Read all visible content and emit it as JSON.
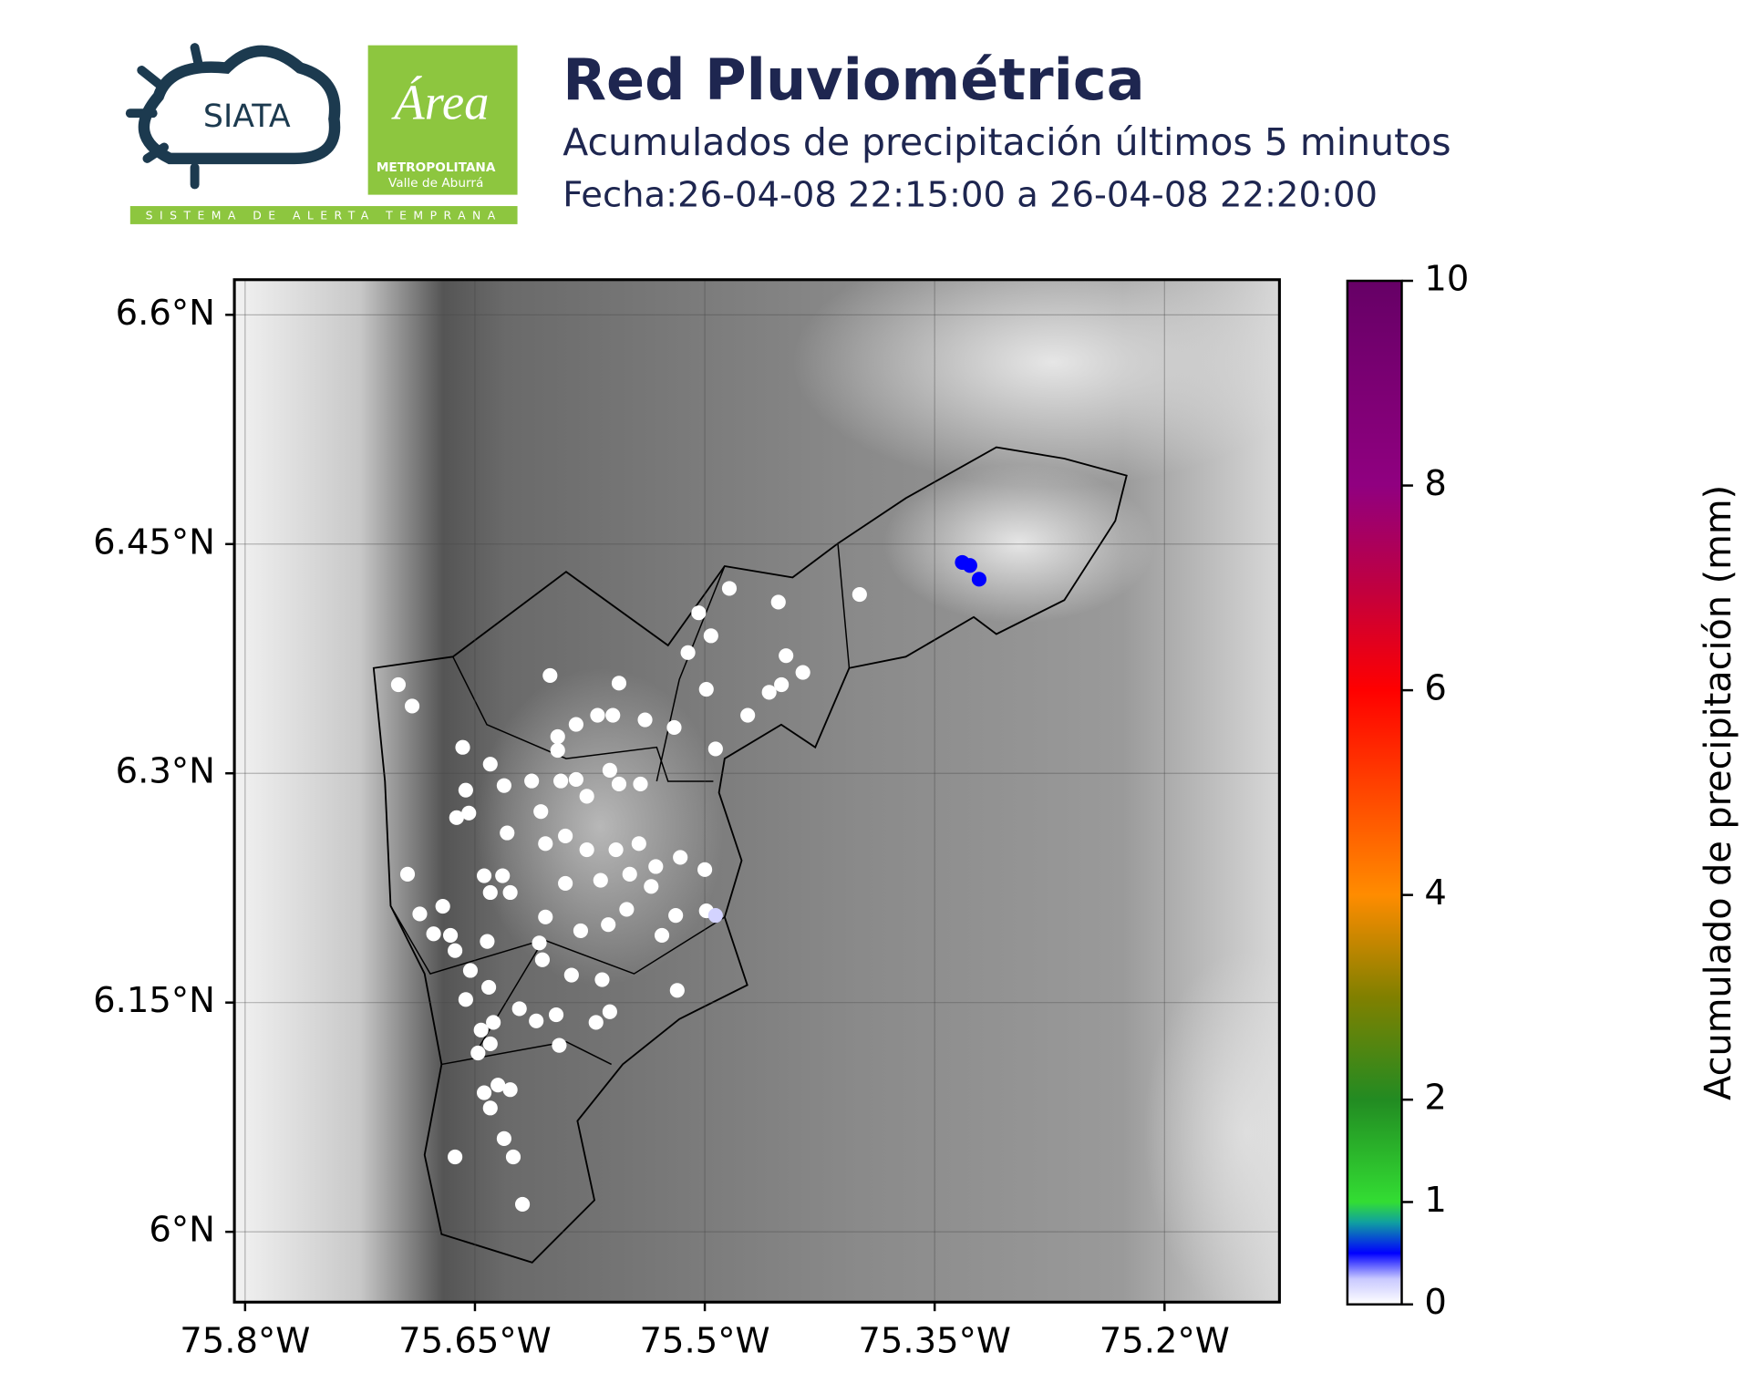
{
  "logos": {
    "siata": "SIATA",
    "area": "Área",
    "metropolitana": "METROPOLITANA",
    "valle": "Valle de Aburrá",
    "sistema": "SISTEMA DE ALERTA TEMPRANA"
  },
  "chart_data": {
    "type": "scatter",
    "title": "Red Pluviométrica",
    "subtitle": "Acumulados de precipitación últimos 5 minutos",
    "date": "Fecha:26-04-08 22:15:00 a 26-04-08 22:20:00",
    "xlim": [
      -75.807,
      -75.125
    ],
    "ylim": [
      5.954,
      6.623
    ],
    "xticks": [
      {
        "value": -75.8,
        "label": "75.8°W"
      },
      {
        "value": -75.65,
        "label": "75.65°W"
      },
      {
        "value": -75.5,
        "label": "75.5°W"
      },
      {
        "value": -75.35,
        "label": "75.35°W"
      },
      {
        "value": -75.2,
        "label": "75.2°W"
      }
    ],
    "yticks": [
      {
        "value": 6.6,
        "label": "6.6°N"
      },
      {
        "value": 6.45,
        "label": "6.45°N"
      },
      {
        "value": 6.3,
        "label": "6.3°N"
      },
      {
        "value": 6.15,
        "label": "6.15°N"
      },
      {
        "value": 6,
        "label": "6°N"
      }
    ],
    "grid": true,
    "colorbar": {
      "label": "Acumulado de precipitación (mm)",
      "lim": [
        0,
        10
      ],
      "ticks": [
        0,
        1,
        2,
        4,
        6,
        8,
        10
      ],
      "colors": [
        [
          0,
          "#ffffff"
        ],
        [
          0.25,
          "#c8c8ff"
        ],
        [
          0.5,
          "#0000ff"
        ],
        [
          0.8,
          "#10a0a0"
        ],
        [
          1,
          "#33dd33"
        ],
        [
          2,
          "#228b22"
        ],
        [
          3,
          "#808000"
        ],
        [
          4,
          "#ff8c00"
        ],
        [
          6,
          "#ff0000"
        ],
        [
          7,
          "#c00040"
        ],
        [
          8,
          "#900080"
        ],
        [
          10,
          "#660066"
        ]
      ]
    },
    "x": [
      -75.7,
      -75.691,
      -75.658,
      -75.64,
      -75.601,
      -75.556,
      -75.484,
      -75.504,
      -75.452,
      -75.399,
      -75.511,
      -75.496,
      -75.447,
      -75.436,
      -75.458,
      -75.45,
      -75.499,
      -75.472,
      -75.52,
      -75.493,
      -75.596,
      -75.584,
      -75.57,
      -75.56,
      -75.596,
      -75.539,
      -75.631,
      -75.613,
      -75.656,
      -75.662,
      -75.654,
      -75.594,
      -75.584,
      -75.562,
      -75.556,
      -75.542,
      -75.577,
      -75.607,
      -75.629,
      -75.604,
      -75.591,
      -75.577,
      -75.558,
      -75.543,
      -75.532,
      -75.516,
      -75.5,
      -75.694,
      -75.644,
      -75.632,
      -75.64,
      -75.627,
      -75.591,
      -75.568,
      -75.549,
      -75.535,
      -75.686,
      -75.671,
      -75.677,
      -75.666,
      -75.663,
      -75.642,
      -75.604,
      -75.581,
      -75.563,
      -75.551,
      -75.519,
      -75.499,
      -75.528,
      -75.608,
      -75.606,
      -75.587,
      -75.567,
      -75.653,
      -75.641,
      -75.656,
      -75.638,
      -75.621,
      -75.61,
      -75.597,
      -75.562,
      -75.571,
      -75.518,
      -75.646,
      -75.64,
      -75.648,
      -75.595,
      -75.635,
      -75.627,
      -75.644,
      -75.64,
      -75.631,
      -75.625,
      -75.663,
      -75.619,
      -75.332,
      -75.327,
      -75.321,
      -75.493
    ],
    "y": [
      6.358,
      6.344,
      6.317,
      6.306,
      6.364,
      6.359,
      6.421,
      6.405,
      6.412,
      6.417,
      6.379,
      6.39,
      6.377,
      6.366,
      6.353,
      6.358,
      6.355,
      6.338,
      6.33,
      6.316,
      6.324,
      6.332,
      6.338,
      6.338,
      6.315,
      6.335,
      6.292,
      6.295,
      6.289,
      6.271,
      6.274,
      6.295,
      6.296,
      6.302,
      6.293,
      6.293,
      6.285,
      6.275,
      6.261,
      6.254,
      6.259,
      6.25,
      6.25,
      6.254,
      6.239,
      6.245,
      6.237,
      6.234,
      6.233,
      6.233,
      6.222,
      6.222,
      6.228,
      6.23,
      6.234,
      6.226,
      6.208,
      6.213,
      6.195,
      6.194,
      6.184,
      6.19,
      6.206,
      6.197,
      6.201,
      6.211,
      6.207,
      6.21,
      6.194,
      6.189,
      6.178,
      6.168,
      6.165,
      6.171,
      6.16,
      6.152,
      6.137,
      6.146,
      6.138,
      6.142,
      6.144,
      6.137,
      6.158,
      6.132,
      6.123,
      6.117,
      6.122,
      6.096,
      6.093,
      6.091,
      6.081,
      6.061,
      6.049,
      6.049,
      6.018,
      6.438,
      6.436,
      6.427,
      6.207
    ],
    "values": [
      0,
      0,
      0,
      0,
      0,
      0,
      0,
      0,
      0,
      0,
      0,
      0,
      0,
      0,
      0,
      0,
      0,
      0,
      0,
      0,
      0,
      0,
      0,
      0,
      0,
      0,
      0,
      0,
      0,
      0,
      0,
      0,
      0,
      0,
      0,
      0,
      0,
      0,
      0,
      0,
      0,
      0,
      0,
      0,
      0,
      0,
      0,
      0,
      0,
      0,
      0,
      0,
      0,
      0,
      0,
      0,
      0,
      0,
      0,
      0,
      0,
      0,
      0,
      0,
      0,
      0,
      0,
      0,
      0,
      0,
      0,
      0,
      0,
      0,
      0,
      0,
      0,
      0,
      0,
      0,
      0,
      0,
      0,
      0,
      0,
      0,
      0,
      0,
      0,
      0,
      0,
      0,
      0,
      0,
      0,
      0.5,
      0.5,
      0.5,
      0.2
    ]
  }
}
